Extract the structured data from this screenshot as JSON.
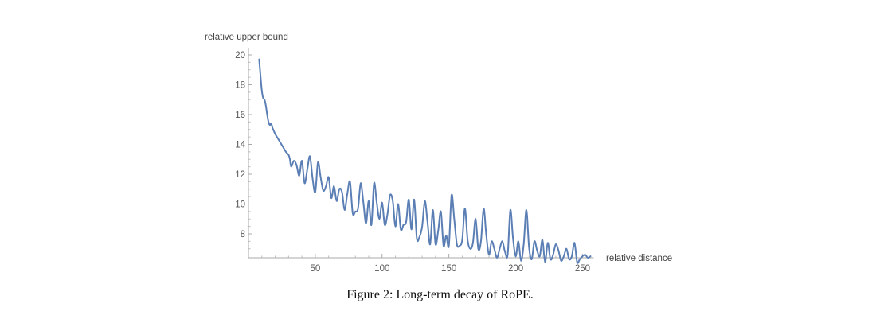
{
  "caption": "Figure 2: Long-term decay of RoPE.",
  "chart_data": {
    "type": "line",
    "title": "",
    "xlabel": "relative distance",
    "ylabel": "relative upper bound",
    "xlim": [
      0,
      256
    ],
    "ylim": [
      6.3,
      20.5
    ],
    "x_ticks": [
      50,
      100,
      150,
      200,
      250
    ],
    "y_ticks": [
      8,
      10,
      12,
      14,
      16,
      18,
      20
    ],
    "grid": false,
    "line_color": "#5b7fb5",
    "series": [
      {
        "x": [
          8,
          9,
          10,
          11,
          12,
          13,
          14,
          15,
          16,
          17,
          18,
          19,
          20,
          22,
          24,
          26,
          28,
          30,
          31,
          32,
          34,
          36,
          38,
          40,
          42,
          44,
          46,
          48,
          50,
          52,
          54,
          56,
          58,
          60,
          62,
          64,
          66,
          68,
          70,
          72,
          74,
          76,
          78,
          80,
          82,
          84,
          86,
          88,
          90,
          92,
          94,
          96,
          98,
          100,
          102,
          104,
          106,
          108,
          110,
          112,
          114,
          116,
          118,
          120,
          122,
          124,
          126,
          128,
          130,
          132,
          134,
          136,
          138,
          140,
          142,
          144,
          146,
          148,
          150,
          152,
          154,
          156,
          158,
          160,
          162,
          164,
          166,
          168,
          170,
          172,
          174,
          176,
          178,
          180,
          182,
          184,
          186,
          188,
          190,
          192,
          194,
          196,
          198,
          200,
          202,
          204,
          206,
          208,
          210,
          212,
          214,
          216,
          218,
          220,
          222,
          224,
          226,
          228,
          230,
          232,
          234,
          236,
          238,
          240,
          242,
          244,
          246,
          248,
          250,
          252,
          254,
          256
        ],
        "y": [
          19.7,
          18.6,
          17.6,
          17.1,
          17.0,
          16.6,
          16.0,
          15.5,
          15.3,
          15.4,
          15.1,
          14.9,
          14.7,
          14.4,
          14.1,
          13.8,
          13.5,
          13.3,
          13.0,
          12.5,
          12.9,
          12.6,
          11.9,
          12.9,
          11.4,
          12.3,
          13.2,
          11.7,
          10.8,
          12.8,
          11.8,
          10.9,
          11.2,
          11.8,
          10.4,
          11.2,
          10.2,
          11.0,
          10.8,
          9.6,
          10.7,
          11.5,
          9.4,
          9.5,
          9.7,
          11.4,
          10.1,
          8.7,
          10.2,
          8.6,
          11.4,
          10.1,
          9.0,
          10.1,
          8.6,
          9.3,
          10.6,
          10.2,
          8.5,
          10.0,
          8.3,
          8.6,
          8.8,
          10.3,
          8.3,
          10.3,
          7.7,
          7.8,
          8.5,
          10.2,
          8.8,
          7.3,
          9.6,
          7.3,
          8.2,
          9.5,
          7.2,
          7.9,
          7.2,
          10.6,
          9.0,
          7.3,
          7.2,
          7.6,
          9.7,
          7.6,
          7.0,
          7.4,
          9.0,
          7.0,
          7.5,
          9.7,
          7.9,
          6.6,
          7.5,
          7.0,
          6.4,
          7.0,
          7.5,
          6.8,
          6.6,
          9.6,
          7.7,
          6.5,
          7.5,
          6.2,
          7.3,
          9.6,
          7.1,
          6.3,
          7.5,
          6.9,
          6.5,
          7.6,
          6.1,
          7.4,
          6.3,
          6.6,
          7.3,
          6.9,
          6.2,
          6.5,
          7.0,
          6.3,
          6.5,
          7.4,
          6.1,
          6.3,
          6.5,
          6.6,
          6.4,
          6.5
        ]
      }
    ]
  }
}
